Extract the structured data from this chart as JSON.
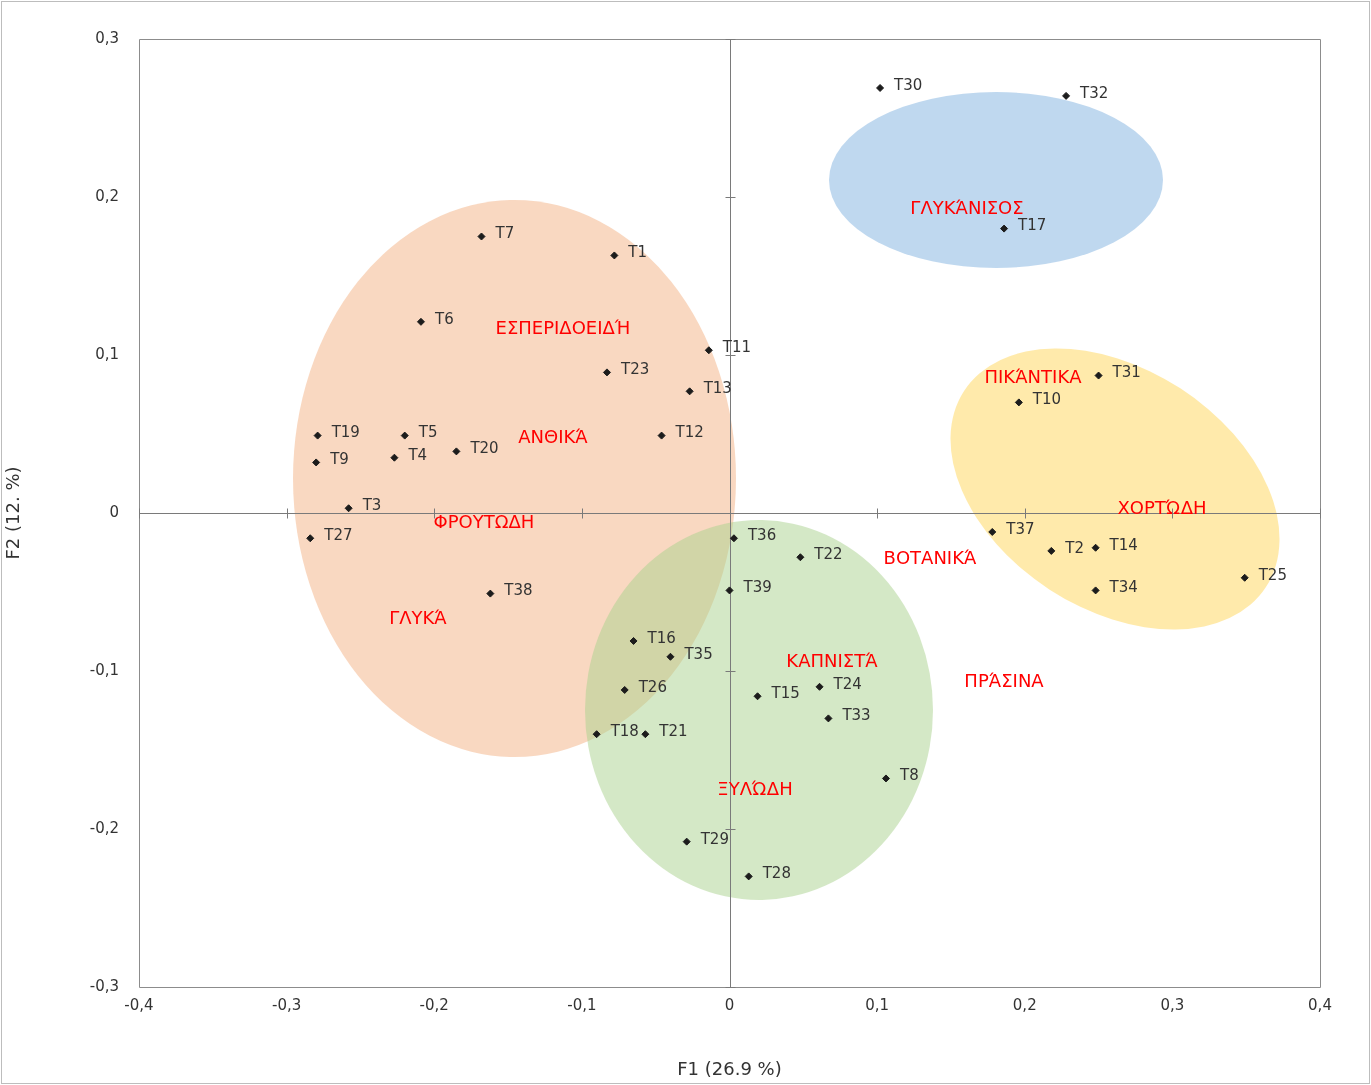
{
  "chart_data": {
    "type": "scatter",
    "xlabel": "F1 (26.9 %)",
    "ylabel": "F2 (12. %)",
    "marker": "diamond",
    "xlim": [
      -0.4,
      0.4
    ],
    "ylim": [
      -0.3,
      0.3
    ],
    "xticks": [
      {
        "value": -0.4,
        "label": "-0,4"
      },
      {
        "value": -0.3,
        "label": "-0,3"
      },
      {
        "value": -0.2,
        "label": "-0,2"
      },
      {
        "value": -0.1,
        "label": "-0,1"
      },
      {
        "value": 0,
        "label": "0"
      },
      {
        "value": 0.1,
        "label": "0,1"
      },
      {
        "value": 0.2,
        "label": "0,2"
      },
      {
        "value": 0.3,
        "label": "0,3"
      },
      {
        "value": 0.4,
        "label": "0,4"
      }
    ],
    "yticks": [
      {
        "value": -0.3,
        "label": "-0,3"
      },
      {
        "value": -0.2,
        "label": "-0,2"
      },
      {
        "value": -0.1,
        "label": "-0,1"
      },
      {
        "value": 0,
        "label": "0"
      },
      {
        "value": 0.1,
        "label": "0,1"
      },
      {
        "value": 0.2,
        "label": "0,2"
      },
      {
        "value": 0.3,
        "label": "0,3"
      }
    ],
    "series": [
      {
        "name": "T30",
        "color": "#1c1c1c",
        "x": [
          0.102
        ],
        "values": [
          0.269
        ]
      },
      {
        "name": "T32",
        "color": "#1c1c1c",
        "x": [
          0.228
        ],
        "values": [
          0.264
        ]
      },
      {
        "name": "T17",
        "color": "#1c1c1c",
        "x": [
          0.186
        ],
        "values": [
          0.18
        ]
      },
      {
        "name": "T7",
        "color": "#1c1c1c",
        "x": [
          -0.168
        ],
        "values": [
          0.175
        ]
      },
      {
        "name": "T1",
        "color": "#1c1c1c",
        "x": [
          -0.078
        ],
        "values": [
          0.163
        ]
      },
      {
        "name": "T6",
        "color": "#1c1c1c",
        "x": [
          -0.209
        ],
        "values": [
          0.121
        ]
      },
      {
        "name": "T11",
        "color": "#1c1c1c",
        "x": [
          -0.014
        ],
        "values": [
          0.103
        ]
      },
      {
        "name": "T23",
        "color": "#1c1c1c",
        "x": [
          -0.083
        ],
        "values": [
          0.089
        ]
      },
      {
        "name": "T13",
        "color": "#1c1c1c",
        "x": [
          -0.027
        ],
        "values": [
          0.077
        ]
      },
      {
        "name": "T31",
        "color": "#1c1c1c",
        "x": [
          0.25
        ],
        "values": [
          0.087
        ]
      },
      {
        "name": "T10",
        "color": "#1c1c1c",
        "x": [
          0.196
        ],
        "values": [
          0.07
        ]
      },
      {
        "name": "T19",
        "color": "#1c1c1c",
        "x": [
          -0.279
        ],
        "values": [
          0.049
        ]
      },
      {
        "name": "T5",
        "color": "#1c1c1c",
        "x": [
          -0.22
        ],
        "values": [
          0.049
        ]
      },
      {
        "name": "T12",
        "color": "#1c1c1c",
        "x": [
          -0.046
        ],
        "values": [
          0.049
        ]
      },
      {
        "name": "T20",
        "color": "#1c1c1c",
        "x": [
          -0.185
        ],
        "values": [
          0.039
        ]
      },
      {
        "name": "T4",
        "color": "#1c1c1c",
        "x": [
          -0.227
        ],
        "values": [
          0.035
        ]
      },
      {
        "name": "T9",
        "color": "#1c1c1c",
        "x": [
          -0.28
        ],
        "values": [
          0.032
        ]
      },
      {
        "name": "T3",
        "color": "#1c1c1c",
        "x": [
          -0.258
        ],
        "values": [
          0.003
        ]
      },
      {
        "name": "T27",
        "color": "#1c1c1c",
        "x": [
          -0.284
        ],
        "values": [
          -0.016
        ]
      },
      {
        "name": "T37",
        "color": "#1c1c1c",
        "x": [
          0.178
        ],
        "values": [
          -0.012
        ]
      },
      {
        "name": "T2",
        "color": "#1c1c1c",
        "x": [
          0.218
        ],
        "values": [
          -0.024
        ]
      },
      {
        "name": "T14",
        "color": "#1c1c1c",
        "x": [
          0.248
        ],
        "values": [
          -0.022
        ]
      },
      {
        "name": "T25",
        "color": "#1c1c1c",
        "x": [
          0.349
        ],
        "values": [
          -0.041
        ]
      },
      {
        "name": "T34",
        "color": "#1c1c1c",
        "x": [
          0.248
        ],
        "values": [
          -0.049
        ]
      },
      {
        "name": "T36",
        "color": "#1c1c1c",
        "x": [
          0.003
        ],
        "values": [
          -0.016
        ]
      },
      {
        "name": "T22",
        "color": "#1c1c1c",
        "x": [
          0.048
        ],
        "values": [
          -0.028
        ]
      },
      {
        "name": "T39",
        "color": "#1c1c1c",
        "x": [
          0.0
        ],
        "values": [
          -0.049
        ]
      },
      {
        "name": "T38",
        "color": "#1c1c1c",
        "x": [
          -0.162
        ],
        "values": [
          -0.051
        ]
      },
      {
        "name": "T16",
        "color": "#1c1c1c",
        "x": [
          -0.065
        ],
        "values": [
          -0.081
        ]
      },
      {
        "name": "T35",
        "color": "#1c1c1c",
        "x": [
          -0.04
        ],
        "values": [
          -0.091
        ]
      },
      {
        "name": "T26",
        "color": "#1c1c1c",
        "x": [
          -0.071
        ],
        "values": [
          -0.112
        ]
      },
      {
        "name": "T24",
        "color": "#1c1c1c",
        "x": [
          0.061
        ],
        "values": [
          -0.11
        ]
      },
      {
        "name": "T15",
        "color": "#1c1c1c",
        "x": [
          0.019
        ],
        "values": [
          -0.116
        ]
      },
      {
        "name": "T33",
        "color": "#1c1c1c",
        "x": [
          0.067
        ],
        "values": [
          -0.13
        ]
      },
      {
        "name": "T18",
        "color": "#1c1c1c",
        "x": [
          -0.09
        ],
        "values": [
          -0.14
        ]
      },
      {
        "name": "T21",
        "color": "#1c1c1c",
        "x": [
          -0.057
        ],
        "values": [
          -0.14
        ]
      },
      {
        "name": "T8",
        "color": "#1c1c1c",
        "x": [
          0.106
        ],
        "values": [
          -0.168
        ]
      },
      {
        "name": "T29",
        "color": "#1c1c1c",
        "x": [
          -0.029
        ],
        "values": [
          -0.208
        ]
      },
      {
        "name": "T28",
        "color": "#1c1c1c",
        "x": [
          0.013
        ],
        "values": [
          -0.23
        ]
      }
    ],
    "annotations": [
      "ΓΛΥΚΆΝΙΣΟΣ",
      "ΕΣΠΕΡΙΔΟΕΙΔΉ",
      "ΑΝΘΙΚΆ",
      "ΦΡΟΥΤΩΔΗ",
      "ΓΛΥΚΆ",
      "ΠΙΚΆΝΤΙΚΑ",
      "ΧΟΡΤΏΔΗ",
      "ΒΟΤΑΝΙΚΆ",
      "ΚΑΠΝΙΣΤΆ",
      "ΠΡΆΣΙΝΑ",
      "ΞΥΛΏΔΗ"
    ]
  }
}
